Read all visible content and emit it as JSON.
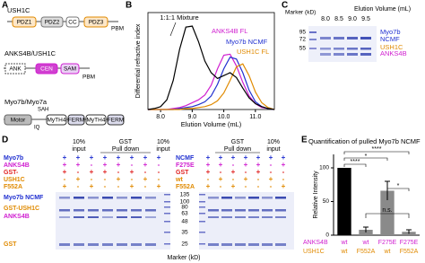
{
  "panel_labels": [
    "A",
    "B",
    "C",
    "D",
    "E"
  ],
  "panel_a": {
    "ush1c": {
      "title": "USH1C",
      "domains": [
        "PDZ1",
        "PDZ2",
        "CC",
        "PDZ3",
        "PBM"
      ]
    },
    "anks4b": {
      "title": "ANKS4B/USH1C",
      "domains": [
        "ANK",
        "CEN",
        "SAM",
        "PBM"
      ]
    },
    "myo7": {
      "title": "Myo7b/Myo7a",
      "domains": [
        "Motor",
        "SAH",
        "IQ",
        "MyTH4",
        "FERM",
        "MyTH4",
        "FERM"
      ]
    }
  },
  "chart_data": [
    {
      "type": "line",
      "title": "1:1:1 Mixture",
      "x_label": "Elution Volume (mL)",
      "y_label": "Differential refractive index",
      "x": [
        7.6,
        7.8,
        8.0,
        8.2,
        8.4,
        8.6,
        8.8,
        9.0,
        9.2,
        9.4,
        9.6,
        9.8,
        10.0,
        10.2,
        10.4,
        10.6,
        10.8,
        11.0,
        11.2,
        11.4,
        11.6
      ],
      "xlim": [
        7.6,
        11.6
      ],
      "xticks": [
        {
          "value": 8,
          "label": "8.0"
        },
        {
          "value": 9,
          "label": "9.0"
        },
        {
          "value": 10,
          "label": "10.0"
        },
        {
          "value": 11,
          "label": "11.0"
        }
      ],
      "ylim": [
        0,
        100
      ],
      "legend": "top-right",
      "series": [
        {
          "name": "ANKS4B FL",
          "color": "#d020d0",
          "values": [
            0,
            0,
            0,
            0,
            1,
            2,
            4,
            7,
            10,
            15,
            25,
            42,
            56,
            57,
            45,
            28,
            14,
            6,
            2,
            1,
            0
          ]
        },
        {
          "name": "Myo7b NCMF",
          "color": "#2030d0",
          "values": [
            0,
            0,
            0,
            0,
            0,
            1,
            2,
            3,
            5,
            8,
            14,
            26,
            42,
            54,
            52,
            38,
            20,
            8,
            3,
            1,
            0
          ]
        },
        {
          "name": "USH1C FL",
          "color": "#e08a00",
          "values": [
            0,
            0,
            0,
            0,
            0,
            0,
            1,
            1,
            2,
            3,
            5,
            9,
            17,
            30,
            44,
            47,
            35,
            18,
            7,
            2,
            0
          ]
        },
        {
          "name": "1:1:1 Mixture",
          "color": "#000000",
          "values": [
            0,
            1,
            3,
            10,
            30,
            62,
            85,
            86,
            70,
            50,
            38,
            32,
            35,
            38,
            33,
            22,
            12,
            6,
            3,
            1,
            0
          ]
        }
      ]
    },
    {
      "type": "bar",
      "title": "Quantification of pulled Myo7b NCMF",
      "y_label": "Relative Intensity",
      "row_labels": [
        "ANKS4B",
        "USH1C"
      ],
      "categories": [
        "wt",
        "wt",
        "F275E",
        "F275E"
      ],
      "categories_2": [
        "wt",
        "F552A",
        "wt",
        "F552A"
      ],
      "values": [
        100,
        8,
        66,
        5
      ],
      "errors": [
        0,
        4,
        14,
        3
      ],
      "colors": [
        "#000000",
        "#8a8a8a",
        "#8a8a8a",
        "#8a8a8a"
      ],
      "ylim": [
        0,
        120
      ],
      "yticks": [
        0,
        50,
        100
      ],
      "annotations": [
        "****",
        "*",
        "****",
        "*",
        "n.s."
      ]
    }
  ],
  "panel_c": {
    "marker_title": "Marker (kD)",
    "elution_title": "Elution Volume (mL)",
    "fractions": [
      "8.0",
      "8.5",
      "9.0",
      "9.5"
    ],
    "markers": [
      95,
      72,
      55
    ],
    "bands": [
      "Myo7b",
      "NCMF",
      "USH1C",
      "ANKS4B"
    ]
  },
  "panel_d": {
    "left_rows": [
      "Myo7b",
      "ANKS4B",
      "GST-",
      "USH1C",
      "F552A"
    ],
    "left_headers": [
      [
        "10%",
        "input"
      ],
      [
        "GST",
        "Pull down"
      ],
      [
        "10%",
        "input"
      ]
    ],
    "left_signs": [
      [
        "+",
        "+",
        "+",
        "+",
        "+",
        "+",
        "+",
        "+"
      ],
      [
        "+",
        "+",
        "-",
        "+",
        "+",
        "-",
        "+",
        "-"
      ],
      [
        "+",
        "-",
        "+",
        "+",
        "-",
        "+",
        "-",
        "-"
      ],
      [
        "-",
        "+",
        "-",
        "-",
        "+",
        "-",
        "+",
        "-"
      ],
      [
        "+",
        "-",
        "+",
        "-",
        "-",
        "+",
        "-",
        "+"
      ]
    ],
    "right_rows": [
      "NCMF",
      "F275E",
      "GST",
      "wt",
      "F552A"
    ],
    "right_headers": [
      [
        "GST",
        "Pull down"
      ],
      [
        "10%",
        "input"
      ]
    ],
    "right_signs": [
      [
        "+",
        "+",
        "+",
        "+",
        "+",
        "+",
        "+"
      ],
      [
        "+",
        "+",
        "-",
        "+",
        "+",
        "-",
        "+"
      ],
      [
        "+",
        "-",
        "+",
        "-",
        "+",
        "-",
        "-"
      ],
      [
        "-",
        "+",
        "-",
        "+",
        "-",
        "+",
        "-"
      ],
      [
        "+",
        "-",
        "+",
        "-",
        "-",
        "-",
        "+"
      ]
    ],
    "gel_labels": [
      "Myo7b NCMF",
      "GST-USH1C",
      "ANKS4B",
      "GST"
    ],
    "ladder": [
      135,
      100,
      80,
      63,
      48,
      35,
      25
    ],
    "ladder_title": "Marker (kD)"
  }
}
